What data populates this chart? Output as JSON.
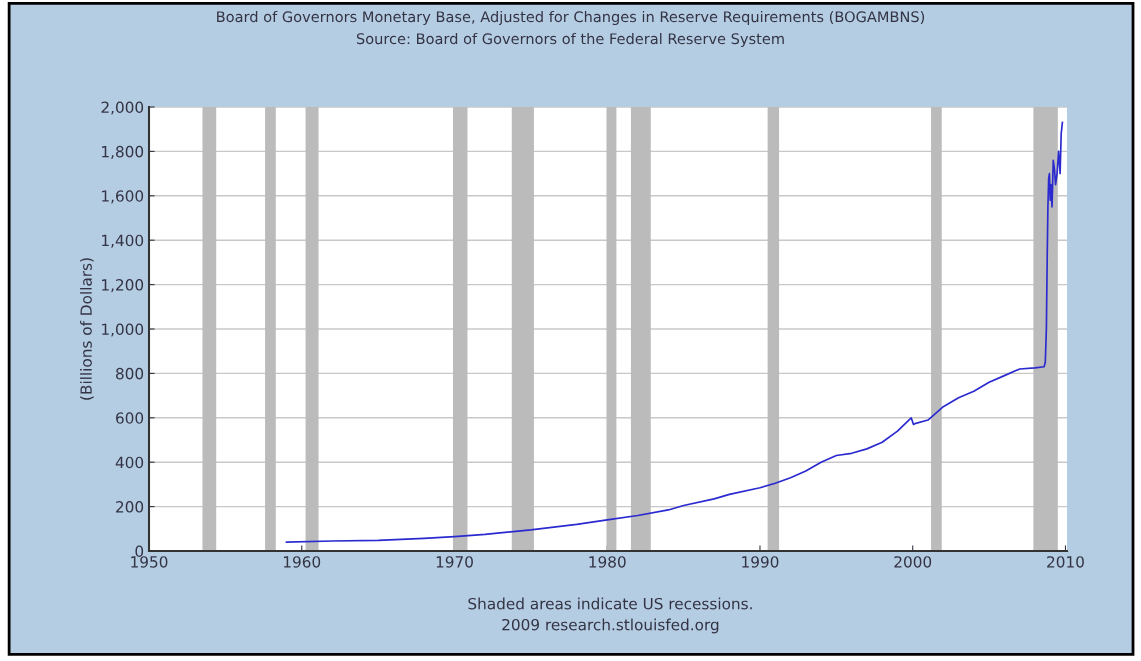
{
  "chart_data": {
    "type": "line",
    "title": "Board of Governors Monetary Base, Adjusted for Changes in Reserve Requirements (BOGAMBNS)",
    "subtitle": "Source: Board of Governors of the Federal Reserve System",
    "ylabel": "(Billions of Dollars)",
    "annotations": [
      "Shaded areas indicate US recessions.",
      "2009 research.stlouisfed.org"
    ],
    "series": [
      {
        "color": "#2a2ad0",
        "x": [
          1959.0,
          1962,
          1965,
          1968,
          1970,
          1972,
          1975,
          1978,
          1980,
          1982,
          1984,
          1985,
          1987,
          1988,
          1990,
          1991,
          1992,
          1993,
          1994,
          1995,
          1996,
          1997,
          1998,
          1999,
          1999.9,
          2000.05,
          2000.2,
          2001,
          2002,
          2003,
          2004,
          2005,
          2006,
          2007,
          2008,
          2008.6,
          2008.68,
          2008.75,
          2008.8,
          2008.85,
          2008.9,
          2008.95,
          2009.0,
          2009.05,
          2009.12,
          2009.2,
          2009.28,
          2009.35,
          2009.45,
          2009.55,
          2009.65,
          2009.72,
          2009.8
        ],
        "values": [
          40,
          45,
          48,
          57,
          65,
          75,
          95,
          120,
          140,
          160,
          185,
          205,
          235,
          255,
          285,
          305,
          330,
          360,
          400,
          430,
          440,
          460,
          490,
          540,
          600,
          570,
          575,
          590,
          650,
          690,
          720,
          760,
          790,
          820,
          825,
          830,
          850,
          1000,
          1300,
          1550,
          1680,
          1700,
          1580,
          1650,
          1550,
          1760,
          1720,
          1650,
          1700,
          1800,
          1700,
          1880,
          1930
        ]
      }
    ],
    "xlim": [
      1950,
      2010.1
    ],
    "xticks": [
      1950,
      1960,
      1970,
      1980,
      1990,
      2000,
      2010
    ],
    "ylim": [
      0,
      2000
    ],
    "yticks": [
      {
        "value": 0,
        "label": "0"
      },
      {
        "value": 200,
        "label": "200"
      },
      {
        "value": 400,
        "label": "400"
      },
      {
        "value": 600,
        "label": "600"
      },
      {
        "value": 800,
        "label": "800"
      },
      {
        "value": 1000,
        "label": "1,000"
      },
      {
        "value": 1200,
        "label": "1,200"
      },
      {
        "value": 1400,
        "label": "1,400"
      },
      {
        "value": 1600,
        "label": "1,600"
      },
      {
        "value": 1800,
        "label": "1,800"
      },
      {
        "value": 2000,
        "label": "2,000"
      }
    ],
    "grid": "y",
    "marker": "none",
    "line_style": "solid",
    "bands": [
      {
        "axis": "x",
        "from": 1953.5,
        "to": 1954.4,
        "color": "#bbbbbb"
      },
      {
        "axis": "x",
        "from": 1957.6,
        "to": 1958.3,
        "color": "#bbbbbb"
      },
      {
        "axis": "x",
        "from": 1960.25,
        "to": 1961.1,
        "color": "#bbbbbb"
      },
      {
        "axis": "x",
        "from": 1969.9,
        "to": 1970.85,
        "color": "#bbbbbb"
      },
      {
        "axis": "x",
        "from": 1973.75,
        "to": 1975.2,
        "color": "#bbbbbb"
      },
      {
        "axis": "x",
        "from": 1979.95,
        "to": 1980.6,
        "color": "#bbbbbb"
      },
      {
        "axis": "x",
        "from": 1981.55,
        "to": 1982.85,
        "color": "#bbbbbb"
      },
      {
        "axis": "x",
        "from": 1990.5,
        "to": 1991.25,
        "color": "#bbbbbb"
      },
      {
        "axis": "x",
        "from": 2001.2,
        "to": 2001.9,
        "color": "#bbbbbb"
      },
      {
        "axis": "x",
        "from": 2007.9,
        "to": 2009.5,
        "color": "#bbbbbb"
      }
    ]
  }
}
